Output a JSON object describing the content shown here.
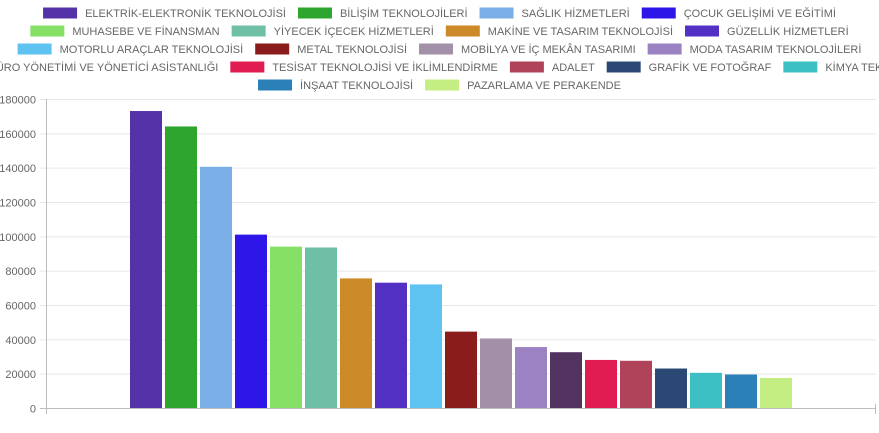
{
  "chart_data": {
    "type": "bar",
    "legend_position": "top",
    "grid": true,
    "ylim": [
      0,
      180000
    ],
    "yticks": [
      0,
      20000,
      40000,
      60000,
      80000,
      100000,
      120000,
      140000,
      160000,
      180000
    ],
    "series": [
      {
        "name": "ELEKTRİK-ELEKTRONİK TEKNOLOJİSİ",
        "value": 173000,
        "color": "#5433a8"
      },
      {
        "name": "BİLİŞİM TEKNOLOJİLERİ",
        "value": 164000,
        "color": "#2ea52e"
      },
      {
        "name": "SAĞLIK HİZMETLERİ",
        "value": 140500,
        "color": "#7aafe8"
      },
      {
        "name": "ÇOCUK GELİŞİMİ VE EĞİTİMİ",
        "value": 101000,
        "color": "#2e16e8"
      },
      {
        "name": "MUHASEBE VE FİNANSMAN",
        "value": 94000,
        "color": "#86e066"
      },
      {
        "name": "YİYECEK İÇECEK HİZMETLERİ",
        "value": 93500,
        "color": "#6fbfa6"
      },
      {
        "name": "MAKİNE VE TASARIM TEKNOLOJİSİ",
        "value": 75500,
        "color": "#cc8a28"
      },
      {
        "name": "GÜZELLİK HİZMETLERİ",
        "value": 73000,
        "color": "#5230c4"
      },
      {
        "name": "MOTORLU ARAÇLAR TEKNOLOJİSİ",
        "value": 72000,
        "color": "#5fc3f2"
      },
      {
        "name": "METAL TEKNOLOJİSİ",
        "value": 44500,
        "color": "#8a1c1c"
      },
      {
        "name": "MOBİLYA VE İÇ MEKÂN TASARIMI",
        "value": 40500,
        "color": "#a290a8"
      },
      {
        "name": "MODA TASARIM TEKNOLOJİLERİ",
        "value": 35500,
        "color": "#9b82c2"
      },
      {
        "name": "BÜRO YÖNETİMİ VE YÖNETİCİ ASİSTANLIĞI",
        "value": 32500,
        "color": "#52325e"
      },
      {
        "name": "TESİSAT TEKNOLOJİSİ VE İKLİMLENDİRME",
        "value": 28000,
        "color": "#e01c52"
      },
      {
        "name": "ADALET",
        "value": 27500,
        "color": "#b0425a"
      },
      {
        "name": "GRAFİK VE FOTOĞRAF",
        "value": 23000,
        "color": "#2b4875"
      },
      {
        "name": "KİMYA TEKNOLOJİSİ",
        "value": 20500,
        "color": "#3cc0c4"
      },
      {
        "name": "İNŞAAT TEKNOLOJİSİ",
        "value": 19500,
        "color": "#2c80b8"
      },
      {
        "name": "PAZARLAMA VE PERAKENDE",
        "value": 17500,
        "color": "#c4ee82"
      }
    ]
  }
}
